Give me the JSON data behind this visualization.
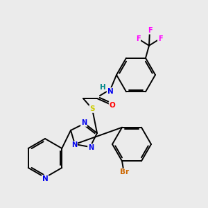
{
  "bg_color": "#ebebeb",
  "atom_colors": {
    "N": "#0000ee",
    "O": "#ff0000",
    "S": "#cccc00",
    "Br": "#cc6600",
    "F": "#ff00ff",
    "H": "#008888",
    "C": "#000000"
  },
  "bg_hex": "#ebebeb"
}
